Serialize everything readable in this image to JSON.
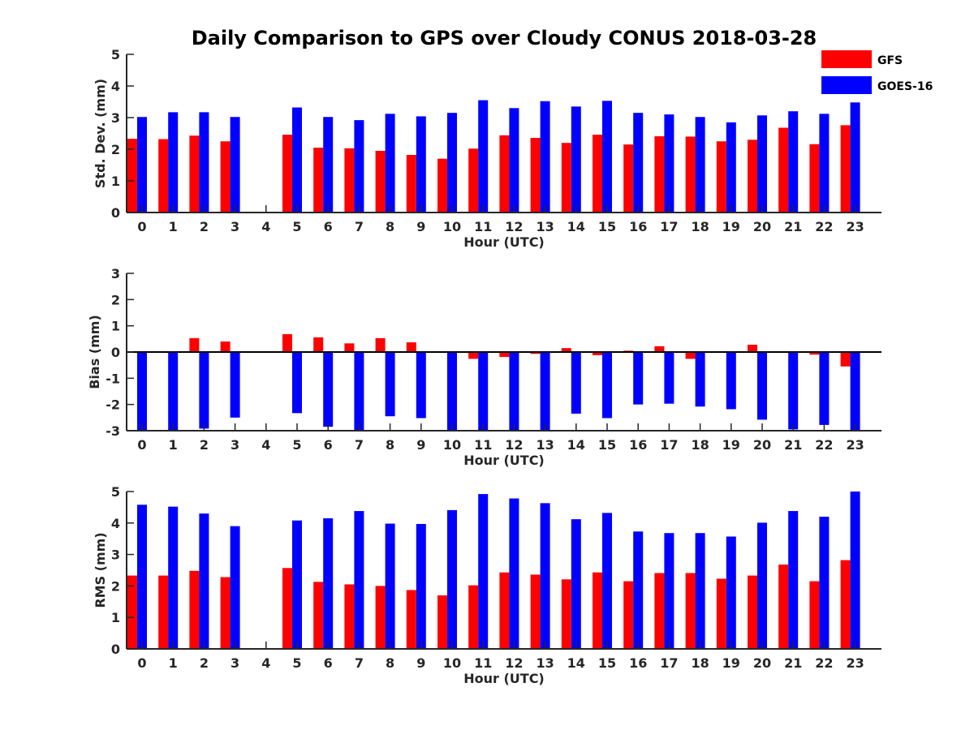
{
  "title": "Daily Comparison to GPS over Cloudy CONUS 2018-03-28",
  "colors": {
    "GFS": "#ff0000",
    "GOES-16": "#0000ff"
  },
  "legend": {
    "placement": "top-right",
    "entries": [
      "GFS",
      "GOES-16"
    ]
  },
  "chart_data": [
    {
      "type": "bar",
      "name": "std",
      "xlabel": "Hour (UTC)",
      "ylabel": "Std. Dev. (mm)",
      "ylim": [
        0,
        5
      ],
      "yticks": [
        0,
        1,
        2,
        3,
        4,
        5
      ],
      "categories": [
        "0",
        "1",
        "2",
        "3",
        "4",
        "5",
        "6",
        "7",
        "8",
        "9",
        "10",
        "11",
        "12",
        "13",
        "14",
        "15",
        "16",
        "17",
        "18",
        "19",
        "20",
        "21",
        "22",
        "23"
      ],
      "series": [
        {
          "name": "GFS",
          "values": [
            2.33,
            2.32,
            2.43,
            2.25,
            null,
            2.46,
            2.05,
            2.03,
            1.95,
            1.82,
            1.7,
            2.02,
            2.44,
            2.36,
            2.2,
            2.46,
            2.15,
            2.41,
            2.4,
            2.25,
            2.3,
            2.68,
            2.16,
            2.76
          ]
        },
        {
          "name": "GOES-16",
          "values": [
            3.02,
            3.17,
            3.17,
            3.02,
            null,
            3.32,
            3.02,
            2.92,
            3.12,
            3.04,
            3.15,
            3.55,
            3.3,
            3.52,
            3.35,
            3.53,
            3.15,
            3.1,
            3.02,
            2.85,
            3.07,
            3.2,
            3.12,
            3.48
          ]
        }
      ]
    },
    {
      "type": "bar",
      "name": "bias",
      "xlabel": "Hour (UTC)",
      "ylabel": "Bias (mm)",
      "ylim": [
        -3,
        3
      ],
      "yticks": [
        -3,
        -2,
        -1,
        0,
        1,
        2,
        3
      ],
      "categories": [
        "0",
        "1",
        "2",
        "3",
        "4",
        "5",
        "6",
        "7",
        "8",
        "9",
        "10",
        "11",
        "12",
        "13",
        "14",
        "15",
        "16",
        "17",
        "18",
        "19",
        "20",
        "21",
        "22",
        "23"
      ],
      "series": [
        {
          "name": "GFS",
          "values": [
            0.0,
            0.02,
            0.53,
            0.4,
            null,
            0.68,
            0.56,
            0.33,
            0.53,
            0.37,
            -0.02,
            -0.26,
            -0.19,
            -0.07,
            0.15,
            -0.12,
            0.05,
            0.22,
            -0.26,
            -0.03,
            0.28,
            -0.02,
            -0.1,
            -0.55
          ]
        },
        {
          "name": "GOES-16",
          "values": [
            -3.0,
            -3.0,
            -2.92,
            -2.5,
            null,
            -2.33,
            -2.85,
            -3.0,
            -2.45,
            -2.52,
            -3.0,
            -3.0,
            -3.0,
            -2.97,
            -2.35,
            -2.52,
            -2.0,
            -1.97,
            -2.08,
            -2.18,
            -2.58,
            -2.95,
            -2.78,
            -3.0
          ]
        }
      ]
    },
    {
      "type": "bar",
      "name": "rms",
      "xlabel": "Hour (UTC)",
      "ylabel": "RMS (mm)",
      "ylim": [
        0,
        5
      ],
      "yticks": [
        0,
        1,
        2,
        3,
        4,
        5
      ],
      "categories": [
        "0",
        "1",
        "2",
        "3",
        "4",
        "5",
        "6",
        "7",
        "8",
        "9",
        "10",
        "11",
        "12",
        "13",
        "14",
        "15",
        "16",
        "17",
        "18",
        "19",
        "20",
        "21",
        "22",
        "23"
      ],
      "series": [
        {
          "name": "GFS",
          "values": [
            2.33,
            2.33,
            2.48,
            2.28,
            null,
            2.57,
            2.13,
            2.05,
            2.0,
            1.87,
            1.7,
            2.02,
            2.43,
            2.36,
            2.21,
            2.43,
            2.15,
            2.41,
            2.41,
            2.23,
            2.33,
            2.68,
            2.15,
            2.82
          ]
        },
        {
          "name": "GOES-16",
          "values": [
            4.58,
            4.52,
            4.3,
            3.9,
            null,
            4.08,
            4.15,
            4.38,
            3.98,
            3.97,
            4.41,
            4.92,
            4.78,
            4.63,
            4.12,
            4.32,
            3.73,
            3.68,
            3.68,
            3.57,
            4.01,
            4.38,
            4.2,
            5.0
          ]
        }
      ]
    }
  ]
}
